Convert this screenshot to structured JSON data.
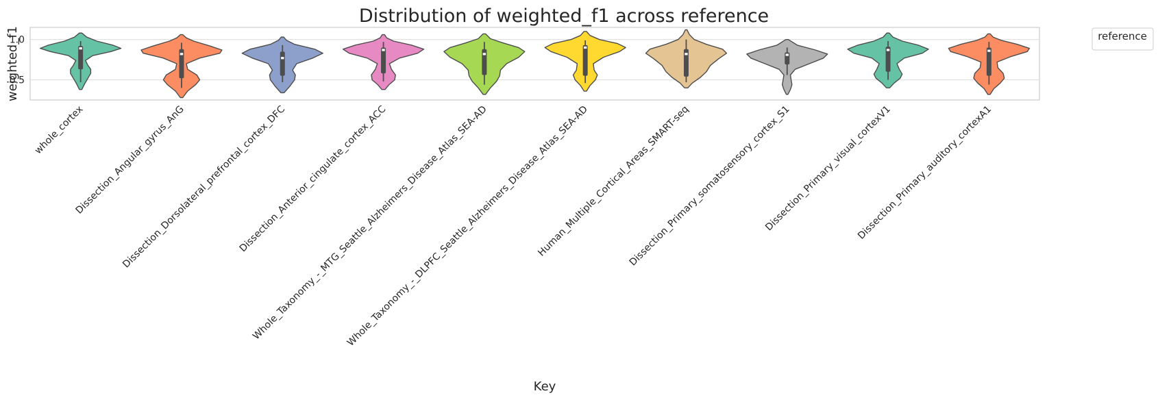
{
  "chart_data": {
    "type": "violin",
    "title": "Distribution of weighted_f1 across reference",
    "xlabel": "Key",
    "ylabel": "weighted_f1",
    "ylim": [
      0.25,
      1.15
    ],
    "yticks": [
      0.5,
      1.0
    ],
    "ytick_labels": [
      "0.5",
      "1.0"
    ],
    "grid": true,
    "legend": {
      "title": "reference",
      "placement": "outside-top-right"
    },
    "categories": [
      "whole_cortex",
      "Dissection_Angular_gyrus_AnG",
      "Dissection_Dorsolateral_prefrontal_cortex_DFC",
      "Dissection_Anterior_cingulate_cortex_ACC",
      "Whole_Taxonomy_-_MTG_Seattle_Alzheimers_Disease_Atlas_SEA-AD",
      "Whole_Taxonomy_-_DLPFC_Seattle_Alzheimers_Disease_Atlas_SEA-AD",
      "Human_Multiple_Cortical_Areas_SMART-seq",
      "Dissection_Primary_somatosensory_cortex_S1",
      "Dissection_Primary_visual_cortexV1",
      "Dissection_Primary_auditory_cortexA1"
    ],
    "colors": [
      "#66c2a5",
      "#fc8d62",
      "#8da0cb",
      "#e78ac3",
      "#a6d854",
      "#ffd92f",
      "#e5c494",
      "#b3b3b3",
      "#66c2a5",
      "#fc8d62"
    ],
    "distributions": [
      {
        "min": 0.38,
        "max": 1.08,
        "q1": 0.63,
        "median": 0.89,
        "q3": 0.92,
        "whisker_low": 0.47,
        "whisker_high": 0.98,
        "density": [
          [
            0.38,
            0.03
          ],
          [
            0.45,
            0.1
          ],
          [
            0.52,
            0.18
          ],
          [
            0.58,
            0.25
          ],
          [
            0.63,
            0.25
          ],
          [
            0.68,
            0.18
          ],
          [
            0.74,
            0.12
          ],
          [
            0.8,
            0.3
          ],
          [
            0.85,
            0.75
          ],
          [
            0.89,
            1.0
          ],
          [
            0.93,
            0.8
          ],
          [
            0.98,
            0.4
          ],
          [
            1.03,
            0.15
          ],
          [
            1.08,
            0.03
          ]
        ]
      },
      {
        "min": 0.28,
        "max": 1.06,
        "q1": 0.52,
        "median": 0.82,
        "q3": 0.88,
        "whisker_low": 0.4,
        "whisker_high": 0.96,
        "density": [
          [
            0.28,
            0.03
          ],
          [
            0.36,
            0.15
          ],
          [
            0.44,
            0.35
          ],
          [
            0.5,
            0.45
          ],
          [
            0.56,
            0.38
          ],
          [
            0.63,
            0.15
          ],
          [
            0.7,
            0.12
          ],
          [
            0.77,
            0.45
          ],
          [
            0.83,
            0.95
          ],
          [
            0.87,
            1.0
          ],
          [
            0.92,
            0.7
          ],
          [
            0.98,
            0.3
          ],
          [
            1.02,
            0.12
          ],
          [
            1.06,
            0.03
          ]
        ]
      },
      {
        "min": 0.34,
        "max": 1.03,
        "q1": 0.55,
        "median": 0.77,
        "q3": 0.85,
        "whisker_low": 0.47,
        "whisker_high": 0.93,
        "density": [
          [
            0.34,
            0.04
          ],
          [
            0.42,
            0.18
          ],
          [
            0.5,
            0.3
          ],
          [
            0.56,
            0.32
          ],
          [
            0.62,
            0.25
          ],
          [
            0.7,
            0.35
          ],
          [
            0.77,
            0.75
          ],
          [
            0.83,
            1.0
          ],
          [
            0.88,
            0.8
          ],
          [
            0.94,
            0.3
          ],
          [
            0.99,
            0.1
          ],
          [
            1.03,
            0.03
          ]
        ]
      },
      {
        "min": 0.38,
        "max": 1.06,
        "q1": 0.58,
        "median": 0.87,
        "q3": 0.9,
        "whisker_low": 0.48,
        "whisker_high": 0.97,
        "density": [
          [
            0.38,
            0.04
          ],
          [
            0.44,
            0.14
          ],
          [
            0.5,
            0.28
          ],
          [
            0.56,
            0.3
          ],
          [
            0.63,
            0.2
          ],
          [
            0.7,
            0.15
          ],
          [
            0.77,
            0.4
          ],
          [
            0.83,
            0.85
          ],
          [
            0.88,
            1.0
          ],
          [
            0.93,
            0.7
          ],
          [
            0.98,
            0.25
          ],
          [
            1.02,
            0.08
          ],
          [
            1.06,
            0.03
          ]
        ]
      },
      {
        "min": 0.32,
        "max": 1.07,
        "q1": 0.56,
        "median": 0.82,
        "q3": 0.88,
        "whisker_low": 0.44,
        "whisker_high": 0.97,
        "density": [
          [
            0.32,
            0.03
          ],
          [
            0.4,
            0.15
          ],
          [
            0.48,
            0.3
          ],
          [
            0.55,
            0.38
          ],
          [
            0.62,
            0.4
          ],
          [
            0.7,
            0.55
          ],
          [
            0.78,
            0.85
          ],
          [
            0.85,
            1.0
          ],
          [
            0.9,
            0.85
          ],
          [
            0.96,
            0.45
          ],
          [
            1.01,
            0.15
          ],
          [
            1.07,
            0.03
          ]
        ]
      },
      {
        "min": 0.36,
        "max": 1.1,
        "q1": 0.55,
        "median": 0.9,
        "q3": 0.93,
        "whisker_low": 0.46,
        "whisker_high": 0.99,
        "density": [
          [
            0.36,
            0.03
          ],
          [
            0.43,
            0.12
          ],
          [
            0.5,
            0.25
          ],
          [
            0.56,
            0.3
          ],
          [
            0.62,
            0.22
          ],
          [
            0.7,
            0.2
          ],
          [
            0.78,
            0.45
          ],
          [
            0.85,
            0.85
          ],
          [
            0.9,
            1.0
          ],
          [
            0.95,
            0.8
          ],
          [
            1.0,
            0.35
          ],
          [
            1.05,
            0.12
          ],
          [
            1.1,
            0.03
          ]
        ]
      },
      {
        "min": 0.4,
        "max": 1.12,
        "q1": 0.54,
        "median": 0.82,
        "q3": 0.88,
        "whisker_low": 0.47,
        "whisker_high": 1.0,
        "density": [
          [
            0.4,
            0.04
          ],
          [
            0.46,
            0.15
          ],
          [
            0.53,
            0.35
          ],
          [
            0.6,
            0.5
          ],
          [
            0.68,
            0.6
          ],
          [
            0.76,
            0.8
          ],
          [
            0.83,
            1.0
          ],
          [
            0.88,
            0.9
          ],
          [
            0.94,
            0.5
          ],
          [
            1.0,
            0.2
          ],
          [
            1.06,
            0.08
          ],
          [
            1.12,
            0.02
          ]
        ]
      },
      {
        "min": 0.32,
        "max": 1.0,
        "q1": 0.69,
        "median": 0.81,
        "q3": 0.84,
        "whisker_low": 0.56,
        "whisker_high": 0.9,
        "density": [
          [
            0.32,
            0.02
          ],
          [
            0.38,
            0.08
          ],
          [
            0.44,
            0.12
          ],
          [
            0.5,
            0.1
          ],
          [
            0.56,
            0.08
          ],
          [
            0.63,
            0.2
          ],
          [
            0.7,
            0.55
          ],
          [
            0.77,
            0.9
          ],
          [
            0.82,
            1.0
          ],
          [
            0.87,
            0.7
          ],
          [
            0.93,
            0.25
          ],
          [
            1.0,
            0.03
          ]
        ]
      },
      {
        "min": 0.4,
        "max": 1.08,
        "q1": 0.6,
        "median": 0.87,
        "q3": 0.91,
        "whisker_low": 0.5,
        "whisker_high": 0.98,
        "density": [
          [
            0.4,
            0.04
          ],
          [
            0.46,
            0.15
          ],
          [
            0.52,
            0.3
          ],
          [
            0.57,
            0.35
          ],
          [
            0.63,
            0.28
          ],
          [
            0.7,
            0.22
          ],
          [
            0.77,
            0.4
          ],
          [
            0.83,
            0.85
          ],
          [
            0.88,
            1.0
          ],
          [
            0.93,
            0.75
          ],
          [
            0.98,
            0.35
          ],
          [
            1.03,
            0.12
          ],
          [
            1.08,
            0.03
          ]
        ]
      },
      {
        "min": 0.32,
        "max": 1.07,
        "q1": 0.55,
        "median": 0.86,
        "q3": 0.9,
        "whisker_low": 0.44,
        "whisker_high": 0.97,
        "density": [
          [
            0.32,
            0.03
          ],
          [
            0.39,
            0.12
          ],
          [
            0.46,
            0.28
          ],
          [
            0.52,
            0.38
          ],
          [
            0.58,
            0.35
          ],
          [
            0.65,
            0.22
          ],
          [
            0.72,
            0.2
          ],
          [
            0.79,
            0.55
          ],
          [
            0.85,
            0.95
          ],
          [
            0.89,
            1.0
          ],
          [
            0.94,
            0.7
          ],
          [
            0.99,
            0.3
          ],
          [
            1.03,
            0.1
          ],
          [
            1.07,
            0.03
          ]
        ]
      }
    ]
  }
}
